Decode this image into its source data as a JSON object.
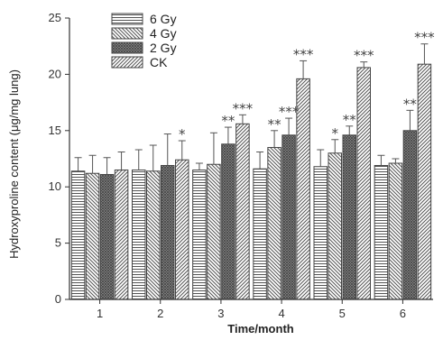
{
  "chart_data": {
    "type": "bar",
    "xlabel": "Time/month",
    "ylabel": "Hydroxyproline content (μg/mg lung)",
    "categories": [
      "1",
      "2",
      "3",
      "4",
      "5",
      "6"
    ],
    "ylim": [
      0,
      25
    ],
    "yticks": [
      0,
      5,
      10,
      15,
      20,
      25
    ],
    "legend_position": "top-left",
    "grid": false,
    "series": [
      {
        "name": "6 Gy",
        "pattern": "horizontal-lines",
        "values": [
          11.4,
          11.5,
          11.5,
          11.6,
          11.8,
          11.9
        ],
        "errors": [
          1.2,
          1.8,
          0.6,
          1.5,
          1.5,
          0.9
        ],
        "stars": [
          "",
          "",
          "",
          "",
          "",
          ""
        ]
      },
      {
        "name": "4 Gy",
        "pattern": "back-diagonal",
        "values": [
          11.2,
          11.4,
          12.0,
          13.5,
          13.0,
          12.1
        ],
        "errors": [
          1.6,
          2.3,
          2.8,
          1.5,
          1.2,
          0.4
        ],
        "stars": [
          "",
          "",
          "",
          "**",
          "*",
          ""
        ]
      },
      {
        "name": "2 Gy",
        "pattern": "crosshatch",
        "values": [
          11.1,
          11.9,
          13.8,
          14.6,
          14.6,
          15.0
        ],
        "errors": [
          1.5,
          2.8,
          1.5,
          1.5,
          0.8,
          1.8
        ],
        "stars": [
          "",
          "",
          "**",
          "***",
          "**",
          "**"
        ]
      },
      {
        "name": "CK",
        "pattern": "forward-diagonal",
        "values": [
          11.5,
          12.4,
          15.6,
          19.6,
          20.6,
          20.9
        ],
        "errors": [
          1.6,
          1.7,
          0.8,
          1.6,
          0.5,
          1.8
        ],
        "stars": [
          "",
          "*",
          "***",
          "***",
          "***",
          "***"
        ]
      }
    ]
  },
  "colors": {
    "axis": "#333333",
    "bar_fill": "#ffffff",
    "pattern_stroke": "#555555",
    "stars": "#444444"
  }
}
